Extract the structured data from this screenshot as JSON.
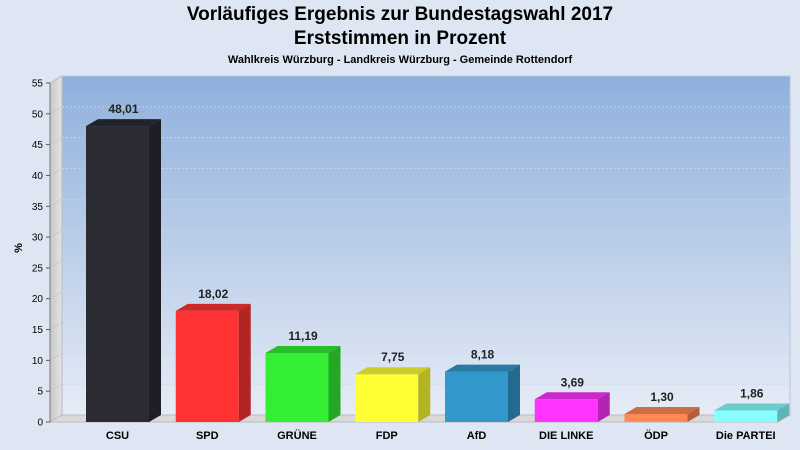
{
  "chart_data": {
    "type": "bar",
    "title": "Vorläufiges Ergebnis zur Bundestagswahl 2017",
    "subtitle": "Erststimmen in Prozent",
    "caption": "Wahlkreis Würzburg - Landkreis Würzburg - Gemeinde Rottendorf",
    "ylabel": "%",
    "xlabel": "",
    "ylim": [
      0,
      55
    ],
    "yticks": [
      "0",
      "5",
      "10",
      "15",
      "20",
      "25",
      "30",
      "35",
      "40",
      "45",
      "50",
      "55"
    ],
    "grid": true,
    "categories": [
      "CSU",
      "SPD",
      "GRÜNE",
      "FDP",
      "AfD",
      "DIE LINKE",
      "ÖDP",
      "Die PARTEI"
    ],
    "values": [
      48.01,
      18.02,
      11.19,
      7.75,
      8.18,
      3.69,
      1.3,
      1.86
    ],
    "value_labels": [
      "48,01",
      "18,02",
      "11,19",
      "7,75",
      "8,18",
      "3,69",
      "1,30",
      "1,86"
    ],
    "colors": [
      "#2b2b33",
      "#ff3333",
      "#33ee33",
      "#ffff33",
      "#3399cc",
      "#ff33ff",
      "#ff8855",
      "#88ffff"
    ]
  }
}
